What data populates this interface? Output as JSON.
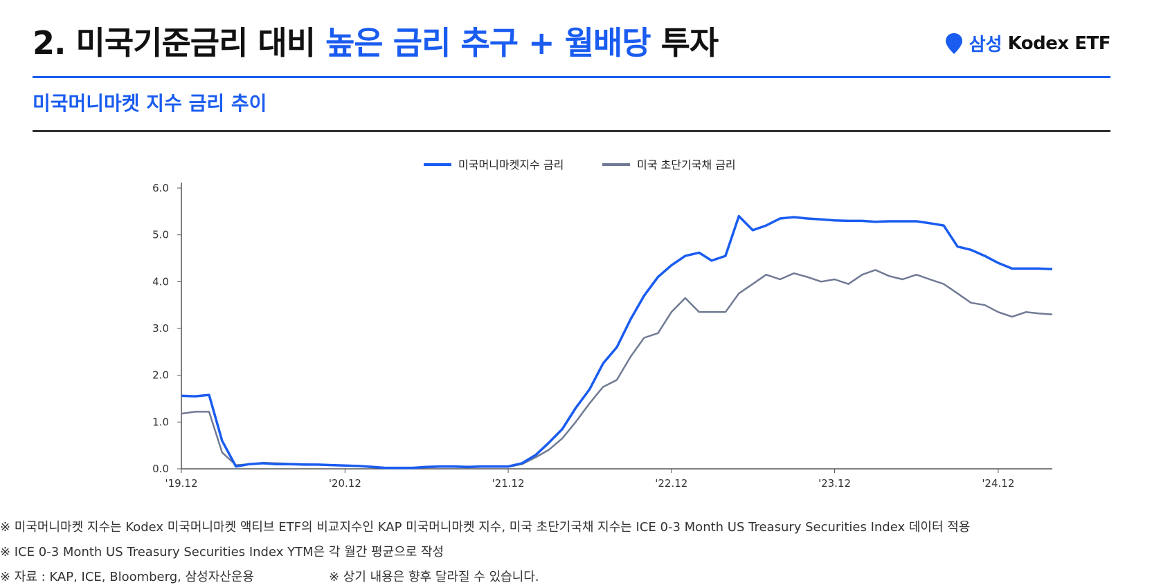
{
  "header": {
    "title_prefix": "2. 미국기준금리 대비 ",
    "title_highlight": "높은 금리 추구 + 월배당",
    "title_suffix": " 투자",
    "brand_korean": "삼성",
    "brand_name": "Kodex ETF",
    "brand_icon": "location-pin-icon"
  },
  "subtitle": "미국머니마켓 지수 금리 추이",
  "colors": {
    "accent": "#1a5cf0",
    "mmf_line": "#1a5cf0",
    "tbill_line": "#707a94",
    "axis": "#555555",
    "text": "#111111"
  },
  "chart_data": {
    "type": "line",
    "title": "",
    "xlabel": "",
    "ylabel": "",
    "ylim": [
      0,
      6
    ],
    "yticks": [
      "6.0",
      "5.0",
      "4.0",
      "3.0",
      "2.0",
      "1.0",
      "0.0"
    ],
    "xticks": [
      "'19.12",
      "'20.12",
      "'21.12",
      "'22.12",
      "'23.12",
      "'24.12"
    ],
    "xtick_dates": [
      "2019-12",
      "2020-12",
      "2021-12",
      "2022-12",
      "2023-12",
      "2024-12"
    ],
    "grid": false,
    "legend": "top-center",
    "series": [
      {
        "name": "미국머니마켓지수 금리",
        "points": [
          [
            "2019-12",
            1.56
          ],
          [
            "2020-01",
            1.55
          ],
          [
            "2020-02",
            1.58
          ],
          [
            "2020-03",
            0.6
          ],
          [
            "2020-04",
            0.05
          ],
          [
            "2020-05",
            0.1
          ],
          [
            "2020-06",
            0.12
          ],
          [
            "2020-07",
            0.1
          ],
          [
            "2020-08",
            0.1
          ],
          [
            "2020-09",
            0.09
          ],
          [
            "2020-10",
            0.09
          ],
          [
            "2020-11",
            0.08
          ],
          [
            "2020-12",
            0.07
          ],
          [
            "2021-01",
            0.06
          ],
          [
            "2021-02",
            0.04
          ],
          [
            "2021-03",
            0.02
          ],
          [
            "2021-04",
            0.02
          ],
          [
            "2021-05",
            0.02
          ],
          [
            "2021-06",
            0.04
          ],
          [
            "2021-07",
            0.05
          ],
          [
            "2021-08",
            0.05
          ],
          [
            "2021-09",
            0.04
          ],
          [
            "2021-10",
            0.05
          ],
          [
            "2021-11",
            0.05
          ],
          [
            "2021-12",
            0.05
          ],
          [
            "2022-01",
            0.12
          ],
          [
            "2022-02",
            0.3
          ],
          [
            "2022-03",
            0.55
          ],
          [
            "2022-04",
            0.85
          ],
          [
            "2022-05",
            1.3
          ],
          [
            "2022-06",
            1.7
          ],
          [
            "2022-07",
            2.25
          ],
          [
            "2022-08",
            2.6
          ],
          [
            "2022-09",
            3.2
          ],
          [
            "2022-10",
            3.7
          ],
          [
            "2022-11",
            4.1
          ],
          [
            "2022-12",
            4.35
          ],
          [
            "2023-01",
            4.55
          ],
          [
            "2023-02",
            4.62
          ],
          [
            "2023-03",
            4.45
          ],
          [
            "2023-04",
            4.55
          ],
          [
            "2023-05",
            5.4
          ],
          [
            "2023-06",
            5.1
          ],
          [
            "2023-07",
            5.2
          ],
          [
            "2023-08",
            5.35
          ],
          [
            "2023-09",
            5.38
          ],
          [
            "2023-10",
            5.35
          ],
          [
            "2023-11",
            5.33
          ],
          [
            "2023-12",
            5.31
          ],
          [
            "2024-01",
            5.3
          ],
          [
            "2024-02",
            5.3
          ],
          [
            "2024-03",
            5.28
          ],
          [
            "2024-04",
            5.29
          ],
          [
            "2024-05",
            5.29
          ],
          [
            "2024-06",
            5.29
          ],
          [
            "2024-07",
            5.25
          ],
          [
            "2024-08",
            5.2
          ],
          [
            "2024-09",
            4.75
          ],
          [
            "2024-10",
            4.68
          ],
          [
            "2024-11",
            4.55
          ],
          [
            "2024-12",
            4.4
          ],
          [
            "2025-01",
            4.28
          ],
          [
            "2025-02",
            4.28
          ],
          [
            "2025-03",
            4.28
          ],
          [
            "2025-04",
            4.27
          ]
        ]
      },
      {
        "name": "미국 초단기국채 금리",
        "points": [
          [
            "2019-12",
            1.18
          ],
          [
            "2020-01",
            1.22
          ],
          [
            "2020-02",
            1.22
          ],
          [
            "2020-03",
            0.35
          ],
          [
            "2020-04",
            0.08
          ],
          [
            "2020-05",
            0.1
          ],
          [
            "2020-06",
            0.13
          ],
          [
            "2020-07",
            0.12
          ],
          [
            "2020-08",
            0.11
          ],
          [
            "2020-09",
            0.1
          ],
          [
            "2020-10",
            0.09
          ],
          [
            "2020-11",
            0.08
          ],
          [
            "2020-12",
            0.07
          ],
          [
            "2021-01",
            0.06
          ],
          [
            "2021-02",
            0.03
          ],
          [
            "2021-03",
            0.02
          ],
          [
            "2021-04",
            0.02
          ],
          [
            "2021-05",
            0.01
          ],
          [
            "2021-06",
            0.03
          ],
          [
            "2021-07",
            0.04
          ],
          [
            "2021-08",
            0.04
          ],
          [
            "2021-09",
            0.03
          ],
          [
            "2021-10",
            0.04
          ],
          [
            "2021-11",
            0.04
          ],
          [
            "2021-12",
            0.04
          ],
          [
            "2022-01",
            0.1
          ],
          [
            "2022-02",
            0.25
          ],
          [
            "2022-03",
            0.4
          ],
          [
            "2022-04",
            0.65
          ],
          [
            "2022-05",
            1.0
          ],
          [
            "2022-06",
            1.4
          ],
          [
            "2022-07",
            1.75
          ],
          [
            "2022-08",
            1.9
          ],
          [
            "2022-09",
            2.4
          ],
          [
            "2022-10",
            2.8
          ],
          [
            "2022-11",
            2.9
          ],
          [
            "2022-12",
            3.35
          ],
          [
            "2023-01",
            3.65
          ],
          [
            "2023-02",
            3.35
          ],
          [
            "2023-03",
            3.35
          ],
          [
            "2023-04",
            3.35
          ],
          [
            "2023-05",
            3.75
          ],
          [
            "2023-06",
            3.95
          ],
          [
            "2023-07",
            4.15
          ],
          [
            "2023-08",
            4.05
          ],
          [
            "2023-09",
            4.18
          ],
          [
            "2023-10",
            4.1
          ],
          [
            "2023-11",
            4.0
          ],
          [
            "2023-12",
            4.05
          ],
          [
            "2024-01",
            3.95
          ],
          [
            "2024-02",
            4.15
          ],
          [
            "2024-03",
            4.25
          ],
          [
            "2024-04",
            4.12
          ],
          [
            "2024-05",
            4.05
          ],
          [
            "2024-06",
            4.15
          ],
          [
            "2024-07",
            4.05
          ],
          [
            "2024-08",
            3.95
          ],
          [
            "2024-09",
            3.75
          ],
          [
            "2024-10",
            3.55
          ],
          [
            "2024-11",
            3.5
          ],
          [
            "2024-12",
            3.35
          ],
          [
            "2025-01",
            3.25
          ],
          [
            "2025-02",
            3.35
          ],
          [
            "2025-03",
            3.32
          ],
          [
            "2025-04",
            3.3
          ]
        ]
      }
    ]
  },
  "footnotes": [
    "※ 미국머니마켓 지수는 Kodex 미국머니마켓 액티브 ETF의 비교지수인 KAP 미국머니마켓 지수, 미국 초단기국채 지수는 ICE 0-3 Month US Treasury Securities Index 데이터 적용",
    "※ ICE 0-3 Month US Treasury Securities Index YTM은 각 월간 평균으로 작성",
    "※ 자료 : KAP, ICE, Bloomberg, 삼성자산운용",
    "※ 상기 내용은 향후 달라질 수 있습니다."
  ]
}
